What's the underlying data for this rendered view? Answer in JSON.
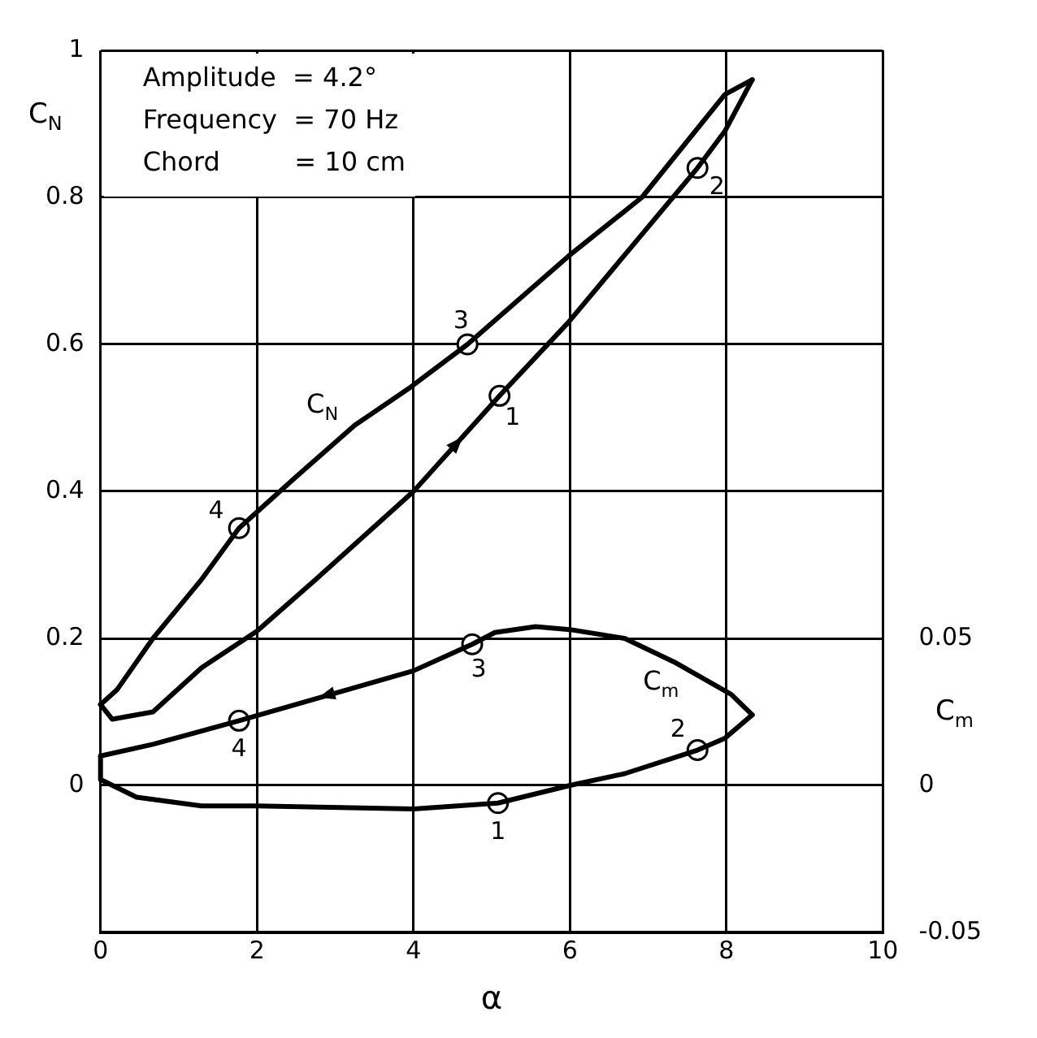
{
  "chart_data": {
    "type": "line",
    "xlabel": "α",
    "ylabel": "C$_{N}$",
    "y2label": "C$_{m}$",
    "annotations": [
      "Amplitude  = 4.2°",
      "Frequency  = 70 Hz",
      "Chord         = 10 cm",
      {
        "text": "1",
        "x": 5.1,
        "y": 0.53
      },
      {
        "text": "2",
        "x": 7.63,
        "y": 0.84
      },
      {
        "text": "3",
        "x": 4.69,
        "y": 0.6
      },
      {
        "text": "4",
        "x": 1.77,
        "y": 0.35
      },
      {
        "text": "1",
        "x": 5.08,
        "y": -0.024
      },
      {
        "text": "2",
        "x": 7.63,
        "y": 0.048
      },
      {
        "text": "3",
        "x": 4.75,
        "y": 0.192
      },
      {
        "text": "4",
        "x": 1.77,
        "y": 0.088
      }
    ],
    "xlim": [
      0,
      10
    ],
    "xticks": [
      0,
      2,
      4,
      6,
      8,
      10
    ],
    "ylim": [
      -0.2,
      1.0
    ],
    "yticks": [
      0,
      0.2,
      0.4,
      0.6,
      0.8,
      1.0
    ],
    "y2lim": [
      -0.05,
      0.25
    ],
    "y2ticks": [
      -0.05,
      0,
      0.05
    ],
    "grid": true,
    "legend": false,
    "line_style": "solid",
    "series": [
      {
        "name": "C$_{N}$",
        "marker": "none",
        "color": "#000000",
        "x": [
          8.33,
          7.98,
          6.92,
          5.98,
          4.69,
          3.94,
          3.25,
          2.5,
          1.77,
          1.29,
          0.67,
          0.21,
          0
        ],
        "values": [
          0.96,
          0.94,
          0.8,
          0.72,
          0.6,
          0.54,
          0.49,
          0.42,
          0.35,
          0.28,
          0.2,
          0.13,
          0.11
        ]
      },
      {
        "marker": "none",
        "color": "#000000",
        "x": [
          0,
          0.15,
          0.67,
          1.29,
          2,
          2.75,
          4,
          5.1,
          5.98,
          7.63,
          7.98,
          8.33
        ],
        "values": [
          0.11,
          0.09,
          0.1,
          0.16,
          0.21,
          0.28,
          0.4,
          0.53,
          0.63,
          0.84,
          0.89,
          0.96
        ]
      },
      {
        "name": "C$_{m}$",
        "axis": "y2",
        "marker": "none",
        "color": "#000000",
        "x": [
          8.33,
          8.06,
          7.33,
          6.7,
          6,
          5.56,
          5.04,
          4.75,
          4,
          1.77,
          0.67,
          0
        ],
        "values": [
          0.024,
          0.031,
          0.042,
          0.05,
          0.053,
          0.054,
          0.052,
          0.048,
          0.039,
          0.022,
          0.014,
          0.01
        ]
      },
      {
        "axis": "y2",
        "marker": "none",
        "color": "#000000",
        "x": [
          0,
          0,
          0.46,
          1.29,
          2,
          4,
          5.08,
          6,
          6.7,
          7.63,
          7.98,
          8.33
        ],
        "values": [
          0.01,
          0.002,
          -0.004,
          -0.007,
          -0.007,
          -0.008,
          -0.006,
          0,
          0.004,
          0.012,
          0.016,
          0.024
        ]
      },
      {
        "type": "scatter",
        "marker": "circle",
        "color": "#000000",
        "x": [
          5.1,
          7.63,
          4.69,
          1.77
        ],
        "values": [
          0.53,
          0.84,
          0.6,
          0.35
        ]
      },
      {
        "type": "scatter",
        "axis": "y2",
        "marker": "circle",
        "color": "#000000",
        "x": [
          5.08,
          7.63,
          4.75,
          1.77
        ],
        "values": [
          -0.006,
          0.012,
          0.048,
          0.022
        ]
      }
    ]
  }
}
